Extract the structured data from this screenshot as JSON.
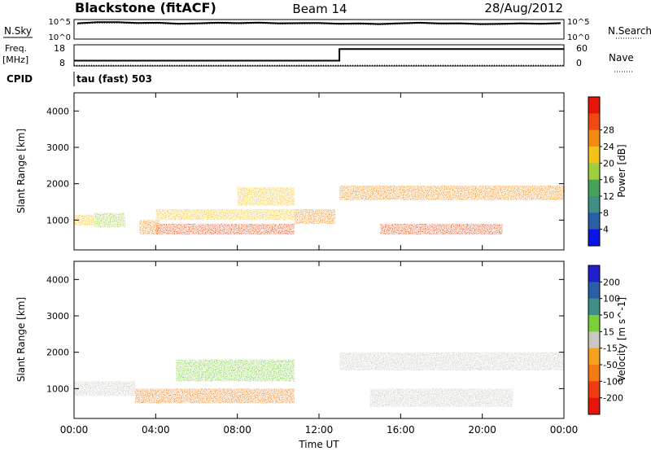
{
  "header": {
    "station": "Blackstone (fitACF)",
    "beam": "Beam 14",
    "date": "28/Aug/2012"
  },
  "side_labels": {
    "nsky": "N.Sky",
    "freq": "Freq.",
    "freq_unit": "[MHz]",
    "cpid": "CPID",
    "nsearch": "N.Search",
    "nave": "Nave"
  },
  "cpid_value": "tau (fast) 503",
  "chart_data": [
    {
      "type": "line",
      "name": "noise",
      "yticks_left": [
        "10^5",
        "10^0"
      ],
      "yticks_right": [
        "10^5",
        "10^0"
      ],
      "series": [
        {
          "name": "N.Sky",
          "style": "solid",
          "values": [
            4.3,
            4.5,
            4.4,
            4.35,
            4.3,
            4.2,
            4.2,
            4.25,
            4.3,
            4.35,
            4.3,
            4.25,
            4.2,
            4.15,
            4.1,
            4.1,
            4.2,
            4.25,
            4.2,
            4.15,
            4.1,
            4.05,
            4.1,
            4.15,
            4.2
          ]
        },
        {
          "name": "N.Search",
          "style": "dotted",
          "values": [
            4.1,
            4.3,
            4.2,
            4.15,
            4.1,
            4.0,
            4.0,
            4.05,
            4.1,
            4.15,
            4.1,
            4.05,
            4.0,
            3.95,
            3.9,
            3.9,
            4.0,
            4.05,
            4.0,
            3.95,
            3.9,
            3.85,
            3.9,
            3.95,
            4.0
          ]
        }
      ]
    },
    {
      "type": "line",
      "name": "frequency",
      "yticks_left": [
        "18",
        "8"
      ],
      "yticks_right": [
        "60",
        "0"
      ],
      "series": [
        {
          "name": "Freq.",
          "style": "solid",
          "x": [
            0,
            13,
            13,
            24
          ],
          "values": [
            10.5,
            10.5,
            16,
            16
          ]
        },
        {
          "name": "Nave",
          "style": "dotted",
          "x": [
            0,
            24
          ],
          "values": [
            2,
            2
          ]
        }
      ]
    },
    {
      "type": "heatmap",
      "name": "power",
      "ylabel": "Slant Range [km]",
      "xlim": [
        0,
        24
      ],
      "ylim": [
        180,
        4500
      ],
      "yticks": [
        1000,
        2000,
        3000,
        4000
      ],
      "colorbar_label": "Power [dB]",
      "colorbar_ticks": [
        "4",
        "8",
        "12",
        "16",
        "20",
        "24",
        "28"
      ],
      "colorbar_colors": [
        "#0a14e6",
        "#2a5fa8",
        "#3f8f86",
        "#47a35a",
        "#9fcf3f",
        "#f4c21b",
        "#f58a12",
        "#ef4a12",
        "#e6150c"
      ],
      "regions": [
        {
          "x": [
            0.0,
            1.0
          ],
          "y": [
            850,
            1150
          ],
          "value": 20
        },
        {
          "x": [
            1.0,
            2.5
          ],
          "y": [
            800,
            1200
          ],
          "value": 14
        },
        {
          "x": [
            3.2,
            4.2
          ],
          "y": [
            600,
            1000
          ],
          "value": 22
        },
        {
          "x": [
            4.0,
            10.8
          ],
          "y": [
            600,
            900
          ],
          "value": 26
        },
        {
          "x": [
            4.0,
            10.8
          ],
          "y": [
            1000,
            1300
          ],
          "value": 18
        },
        {
          "x": [
            8.0,
            10.8
          ],
          "y": [
            1400,
            1900
          ],
          "value": 18
        },
        {
          "x": [
            10.8,
            12.8
          ],
          "y": [
            900,
            1300
          ],
          "value": 24
        },
        {
          "x": [
            13.0,
            24.0
          ],
          "y": [
            1550,
            1950
          ],
          "value": 22
        },
        {
          "x": [
            15.0,
            21.0
          ],
          "y": [
            600,
            900
          ],
          "value": 26
        }
      ]
    },
    {
      "type": "heatmap",
      "name": "velocity",
      "ylabel": "Slant Range [km]",
      "xlabel": "Time UT",
      "xlim": [
        0,
        24
      ],
      "ylim": [
        180,
        4500
      ],
      "yticks": [
        1000,
        2000,
        3000,
        4000
      ],
      "xticks": [
        "00:00",
        "04:00",
        "08:00",
        "12:00",
        "16:00",
        "20:00",
        "00:00"
      ],
      "colorbar_label": "Velocity [m s^-1]",
      "colorbar_ticks": [
        "200",
        "100",
        "50",
        "15",
        "-15",
        "-50",
        "-100",
        "-200"
      ],
      "colorbar_colors": [
        "#1f1fd0",
        "#2a5fa8",
        "#3f8f86",
        "#7ccf3a",
        "#c8c8c0",
        "#f4a21b",
        "#f57a12",
        "#ef3a12",
        "#e6150c"
      ],
      "regions": [
        {
          "x": [
            0.0,
            3.0
          ],
          "y": [
            800,
            1200
          ],
          "value": 0
        },
        {
          "x": [
            3.0,
            10.8
          ],
          "y": [
            600,
            1000
          ],
          "value": -60
        },
        {
          "x": [
            5.0,
            10.8
          ],
          "y": [
            1200,
            1800
          ],
          "value": 40
        },
        {
          "x": [
            13.0,
            24.0
          ],
          "y": [
            1500,
            2000
          ],
          "value": 0
        },
        {
          "x": [
            14.5,
            21.5
          ],
          "y": [
            500,
            1000
          ],
          "value": 0
        }
      ]
    }
  ]
}
